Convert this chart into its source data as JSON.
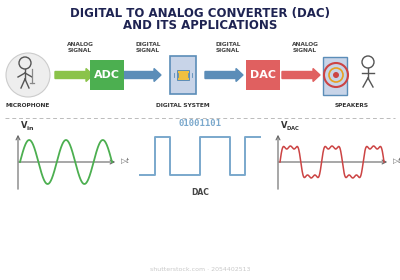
{
  "title_line1": "DIGITAL TO ANALOG CONVERTER (DAC)",
  "title_line2": "AND ITS APPLICATIONS",
  "title_fontsize": 8.5,
  "title_color": "#1e2352",
  "bg_color": "#ffffff",
  "top_section": {
    "adc_color": "#4caf50",
    "dac_color": "#e06060",
    "arrow_color_green": "#8bc34a",
    "arrow_color_blue": "#5b8db8",
    "arrow_color_red": "#e06060",
    "digital_system_fill": "#c8d4e8",
    "digital_system_edge": "#5b8db8",
    "inner_box_fill": "#f0c040",
    "mic_bg": "#e8e8e8",
    "label_color": "#444444",
    "bottom_label_color": "#333333"
  },
  "bottom_section": {
    "vin_color": "#4caf50",
    "square_color": "#7aa8cc",
    "vdac_color": "#cc4444",
    "axis_color": "#666666",
    "binary_text": "01001101",
    "binary_color": "#7aa8cc",
    "dac_label": "DAC",
    "divider_color": "#bbbbbb",
    "label_fontsize": 4.8
  }
}
